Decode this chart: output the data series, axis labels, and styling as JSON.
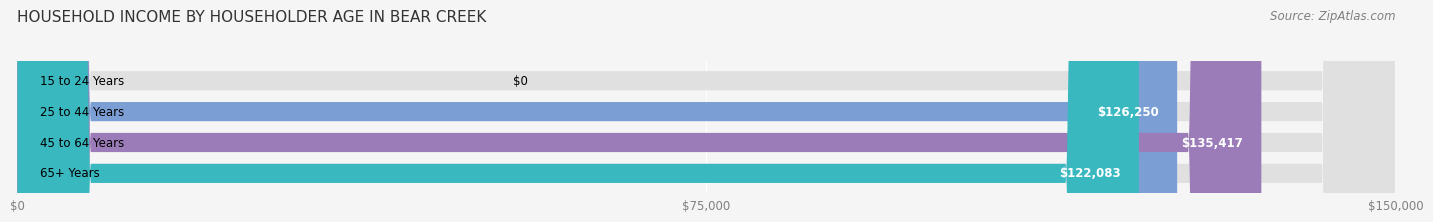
{
  "title": "HOUSEHOLD INCOME BY HOUSEHOLDER AGE IN BEAR CREEK",
  "source": "Source: ZipAtlas.com",
  "categories": [
    "15 to 24 Years",
    "25 to 44 Years",
    "45 to 64 Years",
    "65+ Years"
  ],
  "values": [
    0,
    126250,
    135417,
    122083
  ],
  "bar_colors": [
    "#f08080",
    "#7b9fd4",
    "#9b7bb8",
    "#3ab8c0"
  ],
  "bar_bg_color": "#e0e0e0",
  "value_labels": [
    "$0",
    "$126,250",
    "$135,417",
    "$122,083"
  ],
  "x_ticks": [
    0,
    75000,
    150000
  ],
  "x_tick_labels": [
    "$0",
    "$75,000",
    "$150,000"
  ],
  "x_max": 150000,
  "background_color": "#f5f5f5",
  "title_fontsize": 11,
  "source_fontsize": 8.5,
  "label_fontsize": 8.5,
  "value_fontsize": 8.5,
  "tick_fontsize": 8.5
}
